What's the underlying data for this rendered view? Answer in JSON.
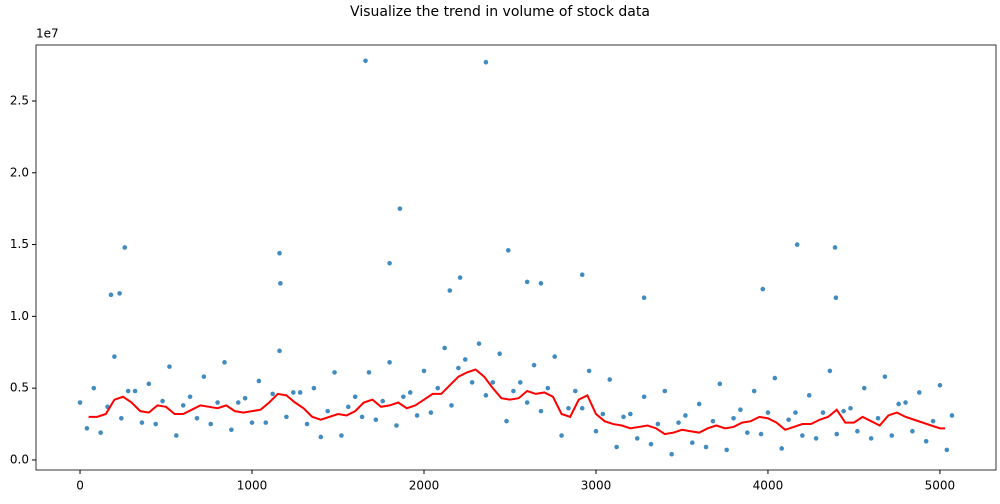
{
  "chart_data": {
    "type": "scatter",
    "title": "Visualize the trend in volume of stock data",
    "y_offset_label": "1e7",
    "xlim": [
      -256,
      5326
    ],
    "ylim": [
      -0.07,
      2.89
    ],
    "xticks": [
      0,
      1000,
      2000,
      3000,
      4000,
      5000
    ],
    "yticks": [
      {
        "value": 0,
        "label": "0.0"
      },
      {
        "value": 0.5,
        "label": "0.5"
      },
      {
        "value": 1,
        "label": "1.0"
      },
      {
        "value": 1.5,
        "label": "1.5"
      },
      {
        "value": 2,
        "label": "2.0"
      },
      {
        "value": 2.5,
        "label": "2.5"
      }
    ],
    "series": [
      {
        "type": "scatter",
        "color": "#1f77b4",
        "x": [
          0,
          40,
          80,
          120,
          160,
          200,
          240,
          280,
          320,
          360,
          400,
          440,
          480,
          520,
          560,
          600,
          640,
          680,
          720,
          760,
          800,
          840,
          880,
          920,
          960,
          1000,
          1040,
          1080,
          1120,
          1160,
          1200,
          1240,
          1280,
          1320,
          1360,
          1400,
          1440,
          1480,
          1520,
          1560,
          1600,
          1640,
          1680,
          1720,
          1760,
          1800,
          1840,
          1880,
          1920,
          1960,
          2000,
          2040,
          2080,
          2120,
          2160,
          2200,
          2240,
          2280,
          2320,
          2360,
          2400,
          2440,
          2480,
          2520,
          2560,
          2600,
          2640,
          2680,
          2720,
          2760,
          2800,
          2840,
          2880,
          2920,
          2960,
          3000,
          3040,
          3080,
          3120,
          3160,
          3200,
          3240,
          3280,
          3320,
          3360,
          3400,
          3440,
          3480,
          3520,
          3560,
          3600,
          3640,
          3680,
          3720,
          3760,
          3800,
          3840,
          3880,
          3920,
          3960,
          4000,
          4040,
          4080,
          4120,
          4160,
          4200,
          4240,
          4280,
          4320,
          4360,
          4400,
          4440,
          4480,
          4520,
          4560,
          4600,
          4640,
          4680,
          4720,
          4760,
          4800,
          4840,
          4880,
          4920,
          4960,
          5000,
          5040,
          5070,
          1660,
          2360,
          1860,
          260,
          1160,
          2490,
          4170,
          4390,
          1800,
          4395,
          3280,
          2210,
          2920,
          180,
          230,
          1165,
          3970,
          2600,
          2680,
          2150
        ],
        "values": [
          0.4,
          0.22,
          0.5,
          0.19,
          0.37,
          0.72,
          0.29,
          0.48,
          0.48,
          0.26,
          0.53,
          0.25,
          0.41,
          0.65,
          0.17,
          0.38,
          0.44,
          0.29,
          0.58,
          0.25,
          0.4,
          0.68,
          0.21,
          0.4,
          0.43,
          0.26,
          0.55,
          0.26,
          0.46,
          0.76,
          0.3,
          0.47,
          0.47,
          0.25,
          0.5,
          0.16,
          0.34,
          0.61,
          0.17,
          0.37,
          0.44,
          0.3,
          0.61,
          0.28,
          0.41,
          0.68,
          0.24,
          0.44,
          0.47,
          0.31,
          0.62,
          0.33,
          0.5,
          0.78,
          0.38,
          0.64,
          0.7,
          0.54,
          0.81,
          0.45,
          0.54,
          0.74,
          0.27,
          0.48,
          0.54,
          0.4,
          0.66,
          0.34,
          0.5,
          0.72,
          0.17,
          0.36,
          0.48,
          0.36,
          0.62,
          0.2,
          0.32,
          0.56,
          0.09,
          0.3,
          0.32,
          0.15,
          0.44,
          0.11,
          0.25,
          0.48,
          0.04,
          0.26,
          0.31,
          0.12,
          0.39,
          0.09,
          0.27,
          0.53,
          0.07,
          0.29,
          0.35,
          0.19,
          0.48,
          0.18,
          0.33,
          0.57,
          0.08,
          0.28,
          0.33,
          0.17,
          0.45,
          0.15,
          0.33,
          0.62,
          0.18,
          0.34,
          0.36,
          0.2,
          0.5,
          0.15,
          0.29,
          0.58,
          0.17,
          0.39,
          0.4,
          0.2,
          0.47,
          0.13,
          0.27,
          0.52,
          0.07,
          0.31,
          2.78,
          2.77,
          1.75,
          1.48,
          1.44,
          1.46,
          1.5,
          1.48,
          1.37,
          1.13,
          1.13,
          1.27,
          1.29,
          1.15,
          1.16,
          1.23,
          1.19,
          1.24,
          1.23,
          1.18
        ]
      },
      {
        "type": "line",
        "color": "#ff0000",
        "x": [
          50,
          100,
          150,
          200,
          250,
          300,
          350,
          400,
          450,
          500,
          550,
          600,
          650,
          700,
          750,
          800,
          850,
          900,
          950,
          1000,
          1050,
          1100,
          1150,
          1200,
          1250,
          1300,
          1350,
          1400,
          1450,
          1500,
          1550,
          1600,
          1650,
          1700,
          1750,
          1800,
          1850,
          1900,
          1950,
          2000,
          2050,
          2100,
          2150,
          2200,
          2250,
          2300,
          2350,
          2400,
          2450,
          2500,
          2550,
          2600,
          2650,
          2700,
          2750,
          2800,
          2850,
          2900,
          2950,
          3000,
          3050,
          3100,
          3150,
          3200,
          3250,
          3300,
          3350,
          3400,
          3450,
          3500,
          3550,
          3600,
          3650,
          3700,
          3750,
          3800,
          3850,
          3900,
          3950,
          4000,
          4050,
          4100,
          4150,
          4200,
          4250,
          4300,
          4350,
          4400,
          4450,
          4500,
          4550,
          4600,
          4650,
          4700,
          4750,
          4800,
          4850,
          4900,
          4950,
          5000,
          5030
        ],
        "values": [
          0.3,
          0.3,
          0.32,
          0.42,
          0.44,
          0.4,
          0.34,
          0.33,
          0.38,
          0.37,
          0.32,
          0.32,
          0.35,
          0.38,
          0.37,
          0.36,
          0.38,
          0.34,
          0.33,
          0.34,
          0.35,
          0.4,
          0.46,
          0.45,
          0.4,
          0.36,
          0.3,
          0.28,
          0.3,
          0.32,
          0.31,
          0.34,
          0.4,
          0.42,
          0.37,
          0.38,
          0.4,
          0.36,
          0.38,
          0.42,
          0.46,
          0.46,
          0.52,
          0.58,
          0.61,
          0.63,
          0.58,
          0.5,
          0.43,
          0.42,
          0.43,
          0.48,
          0.46,
          0.47,
          0.44,
          0.32,
          0.3,
          0.42,
          0.45,
          0.32,
          0.27,
          0.25,
          0.24,
          0.22,
          0.23,
          0.24,
          0.22,
          0.18,
          0.19,
          0.21,
          0.2,
          0.19,
          0.22,
          0.24,
          0.22,
          0.23,
          0.26,
          0.27,
          0.3,
          0.29,
          0.26,
          0.21,
          0.23,
          0.25,
          0.25,
          0.28,
          0.3,
          0.35,
          0.26,
          0.26,
          0.3,
          0.27,
          0.24,
          0.31,
          0.33,
          0.3,
          0.28,
          0.26,
          0.24,
          0.22,
          0.22
        ]
      }
    ]
  }
}
